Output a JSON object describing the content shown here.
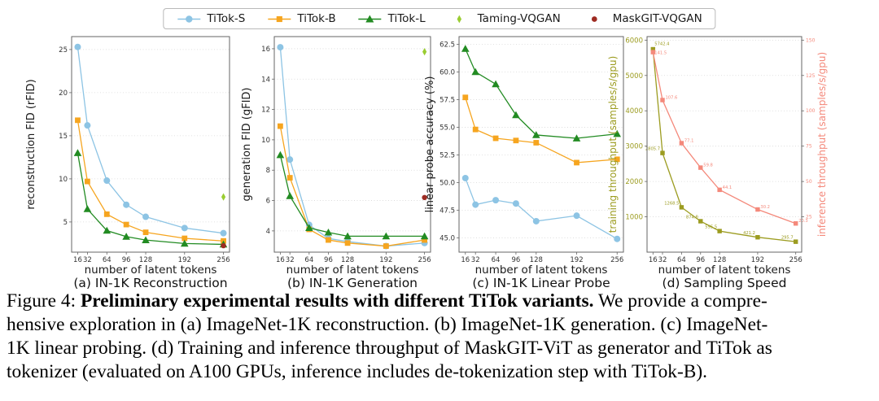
{
  "legend": {
    "entries": [
      {
        "label": "TiTok-S",
        "color": "#8dc4e4",
        "marker": "circle",
        "line": true
      },
      {
        "label": "TiTok-B",
        "color": "#f6a51f",
        "marker": "square",
        "line": true
      },
      {
        "label": "TiTok-L",
        "color": "#228b22",
        "marker": "triangle",
        "line": true
      },
      {
        "label": "Taming-VQGAN",
        "color": "#9acd32",
        "marker": "diamond",
        "line": false
      },
      {
        "label": "MaskGIT-VQGAN",
        "color": "#9e2b22",
        "marker": "dot",
        "line": false
      }
    ]
  },
  "chart_data": [
    {
      "type": "line",
      "title": "(a) IN-1K Reconstruction",
      "xlabel": "number of latent tokens",
      "ylabel": "reconstruction FID (rFID)",
      "x": [
        16,
        32,
        64,
        96,
        128,
        192,
        256
      ],
      "xticklabels": [
        "16",
        "32",
        "64",
        "96",
        "128",
        "192",
        "256"
      ],
      "xlim": [
        6,
        266
      ],
      "ylim": [
        1.5,
        26.5
      ],
      "yticks": [
        5,
        10,
        15,
        20,
        25
      ],
      "grid": true,
      "series": [
        {
          "name": "TiTok-S",
          "marker": "circle",
          "values": [
            25.3,
            16.2,
            9.8,
            7.0,
            5.6,
            4.3,
            3.7
          ]
        },
        {
          "name": "TiTok-B",
          "marker": "square",
          "values": [
            16.8,
            9.7,
            5.9,
            4.7,
            3.8,
            3.1,
            2.8
          ]
        },
        {
          "name": "TiTok-L",
          "marker": "triangle",
          "values": [
            13.0,
            6.5,
            4.0,
            3.3,
            2.9,
            2.5,
            2.4
          ]
        }
      ],
      "points": [
        {
          "name": "Taming-VQGAN",
          "marker": "diamond",
          "x": 256,
          "y": 7.9
        },
        {
          "name": "MaskGIT-VQGAN",
          "marker": "dot",
          "x": 256,
          "y": 2.25
        }
      ]
    },
    {
      "type": "line",
      "title": "(b) IN-1K Generation",
      "xlabel": "number of latent tokens",
      "ylabel": "generation FID (gFID)",
      "x": [
        16,
        32,
        64,
        96,
        128,
        192,
        256
      ],
      "xticklabels": [
        "16",
        "32",
        "64",
        "96",
        "128",
        "192",
        "256"
      ],
      "xlim": [
        6,
        266
      ],
      "ylim": [
        2.6,
        16.8
      ],
      "yticks": [
        4,
        6,
        8,
        10,
        12,
        14,
        16
      ],
      "grid": true,
      "series": [
        {
          "name": "TiTok-S",
          "marker": "circle",
          "values": [
            16.1,
            8.7,
            4.4,
            3.5,
            3.3,
            3.0,
            3.2
          ]
        },
        {
          "name": "TiTok-B",
          "marker": "square",
          "values": [
            10.9,
            7.5,
            4.1,
            3.4,
            3.2,
            3.0,
            3.4
          ]
        },
        {
          "name": "TiTok-L",
          "marker": "triangle",
          "values": [
            9.0,
            6.3,
            4.2,
            3.9,
            3.65,
            3.65,
            3.65
          ]
        }
      ],
      "points": [
        {
          "name": "Taming-VQGAN",
          "marker": "diamond",
          "x": 256,
          "y": 15.8
        },
        {
          "name": "MaskGIT-VQGAN",
          "marker": "dot",
          "x": 256,
          "y": 6.2
        }
      ]
    },
    {
      "type": "line",
      "title": "(c) IN-1K Linear Probe",
      "xlabel": "number of latent tokens",
      "ylabel": "linear probe accuracy (%)",
      "x": [
        16,
        32,
        64,
        96,
        128,
        192,
        256
      ],
      "xticklabels": [
        "16",
        "32",
        "64",
        "96",
        "128",
        "192",
        "256"
      ],
      "xlim": [
        6,
        266
      ],
      "ylim": [
        43.7,
        63.2
      ],
      "yticks": [
        45.0,
        47.5,
        50.0,
        52.5,
        55.0,
        57.5,
        60.0,
        62.5
      ],
      "ytick_decimals": 1,
      "grid": true,
      "series": [
        {
          "name": "TiTok-S",
          "marker": "circle",
          "values": [
            50.4,
            48.0,
            48.4,
            48.1,
            46.5,
            47.0,
            44.9
          ]
        },
        {
          "name": "TiTok-B",
          "marker": "square",
          "values": [
            57.7,
            54.8,
            54.0,
            53.8,
            53.6,
            51.8,
            52.1
          ]
        },
        {
          "name": "TiTok-L",
          "marker": "triangle",
          "values": [
            62.1,
            60.0,
            58.9,
            56.1,
            54.3,
            54.0,
            54.4
          ]
        }
      ],
      "points": []
    },
    {
      "type": "line-dual-axis",
      "title": "(d) Sampling Speed",
      "xlabel": "number of latent tokens",
      "ylabel_left": "training throughput (samples/s/gpu)",
      "ylabel_right": "inference throughput (samples/s/gpu)",
      "color_left": "#9c9c20",
      "color_right": "#f4897b",
      "x": [
        16,
        32,
        64,
        96,
        128,
        192,
        256
      ],
      "xticklabels": [
        "16",
        "32",
        "64",
        "96",
        "128",
        "192",
        "256"
      ],
      "xlim": [
        6,
        266
      ],
      "ylim_left": [
        0,
        6100
      ],
      "yticks_left": [
        1000,
        2000,
        3000,
        4000,
        5000,
        6000
      ],
      "ylim_right": [
        0,
        152.5
      ],
      "yticks_right": [
        25,
        50,
        75,
        100,
        125,
        150
      ],
      "grid": true,
      "series": [
        {
          "name": "training throughput",
          "axis": "left",
          "color": "#9c9c20",
          "marker": "square",
          "values": [
            5742.4,
            2805.7,
            1268.5,
            874.8,
            595.5,
            421.2,
            295.7
          ],
          "labels": [
            "5742.4",
            "2805.7",
            "1268.5",
            "874.8",
            "595.5",
            "421.2",
            "295.7"
          ]
        },
        {
          "name": "inference throughput",
          "axis": "right",
          "color": "#f4897b",
          "marker": "square",
          "values": [
            141.5,
            107.6,
            77.1,
            59.8,
            44.1,
            30.2,
            20.3
          ],
          "labels": [
            "141.5",
            "107.6",
            "77.1",
            "59.8",
            "44.1",
            "30.2",
            "20.3"
          ]
        }
      ],
      "points": []
    }
  ],
  "caption": {
    "prefix": "Figure 4: ",
    "bold": "Preliminary experimental results with different TiTok variants.",
    "line1_rest": " We provide a compre-",
    "line2": "hensive exploration in (a) ImageNet-1K reconstruction. (b) ImageNet-1K generation. (c) ImageNet-",
    "line3": "1K linear probing. (d) Training and inference throughput of MaskGIT-ViT as generator and TiTok as",
    "line4": "tokenizer (evaluated on A100 GPUs, inference includes de-tokenization step with TiTok-B)."
  }
}
